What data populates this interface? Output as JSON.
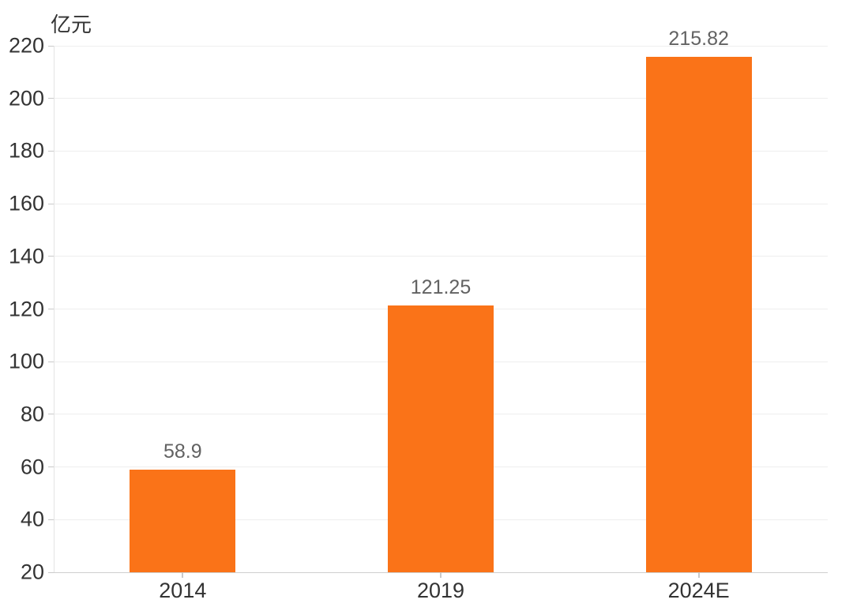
{
  "chart_data": {
    "type": "bar",
    "title": "",
    "ylabel": "亿元",
    "xlabel": "",
    "categories": [
      "2014",
      "2019",
      "2024E"
    ],
    "values": [
      58.9,
      121.25,
      215.82
    ],
    "value_labels": [
      "58.9",
      "121.25",
      "215.82"
    ],
    "ylim": [
      20,
      220
    ],
    "ytick_step": 20,
    "yticks": [
      20,
      40,
      60,
      80,
      100,
      120,
      140,
      160,
      180,
      200,
      220
    ],
    "grid": true,
    "legend": "none",
    "colors": {
      "bar": "#FA7318",
      "grid_line": "#EEEEEE",
      "x_axis_line": "#CFCFCF",
      "y_axis_line": "#E4E4E4",
      "axis_tick": "#C9C9C9",
      "tick_label": "#333333",
      "value_label": "#626262",
      "unit_label": "#333333",
      "background": "#FFFFFF"
    }
  }
}
